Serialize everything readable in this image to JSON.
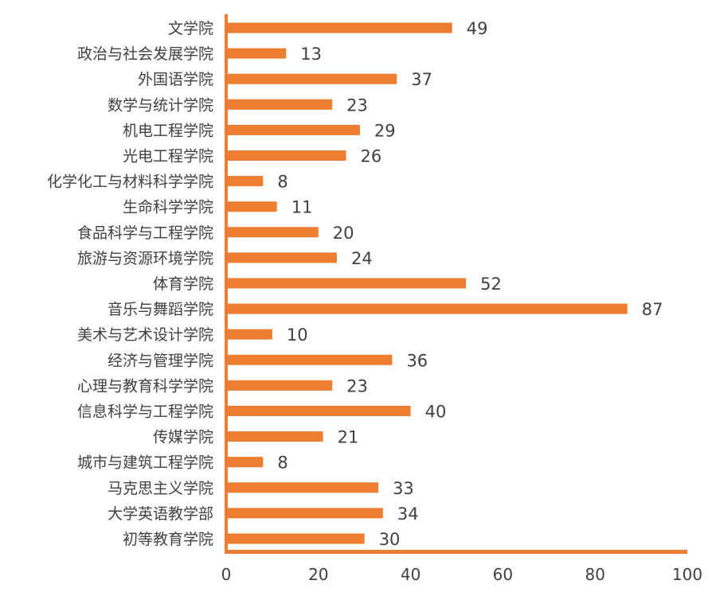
{
  "chart_data": {
    "type": "bar",
    "orientation": "horizontal",
    "title": "",
    "xlabel": "",
    "ylabel": "",
    "categories": [
      "文学院",
      "政治与社会发展学院",
      "外国语学院",
      "数学与统计学院",
      "机电工程学院",
      "光电工程学院",
      "化学化工与材料科学学院",
      "生命科学学院",
      "食品科学与工程学院",
      "旅游与资源环境学院",
      "体育学院",
      "音乐与舞蹈学院",
      "美术与艺术设计学院",
      "经济与管理学院",
      "心理与教育科学学院",
      "信息科学与工程学院",
      "传媒学院",
      "城市与建筑工程学院",
      "马克思主义学院",
      "大学英语教学部",
      "初等教育学院"
    ],
    "values": [
      49,
      13,
      37,
      23,
      29,
      26,
      8,
      11,
      20,
      24,
      52,
      87,
      10,
      36,
      23,
      40,
      21,
      8,
      33,
      34,
      30
    ],
    "xlim": [
      0,
      100
    ],
    "xticks": [
      "0",
      "20",
      "40",
      "60",
      "80",
      "100"
    ],
    "grid": false,
    "legend": "none",
    "bar_color": "#ED7D31"
  }
}
